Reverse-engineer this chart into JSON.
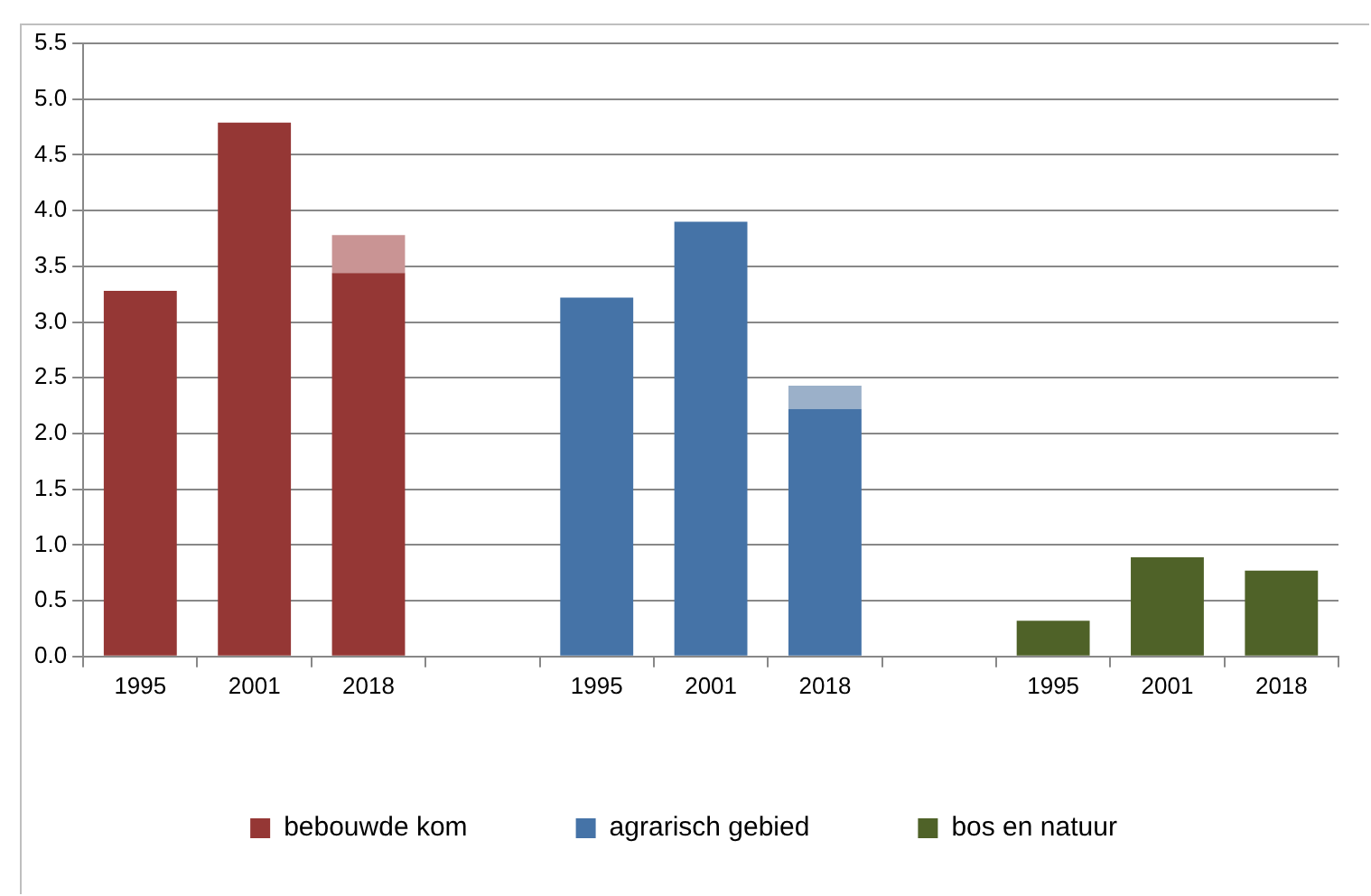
{
  "chart_data": {
    "type": "bar",
    "stacked": true,
    "categories": [
      "1995",
      "2001",
      "2018",
      null,
      "1995",
      "2001",
      "2018",
      null,
      "1995",
      "2001",
      "2018"
    ],
    "series": [
      {
        "name": "bebouwde kom",
        "color": "#953735",
        "values": [
          3.28,
          4.79,
          3.44,
          null,
          null,
          null,
          null,
          null,
          null,
          null,
          null
        ]
      },
      {
        "name": "agrarisch gebied",
        "color": "#4573a7",
        "values": [
          null,
          null,
          null,
          null,
          3.22,
          3.9,
          2.22,
          null,
          null,
          null,
          null
        ]
      },
      {
        "name": "bos en natuur",
        "color": "#4f6228",
        "values": [
          null,
          null,
          null,
          null,
          null,
          null,
          null,
          null,
          0.32,
          0.89,
          0.77
        ]
      },
      {
        "color": "#c99494",
        "values": [
          null,
          null,
          0.34,
          null,
          null,
          null,
          null,
          null,
          null,
          null,
          null
        ]
      },
      {
        "color": "#9bb0c9",
        "values": [
          null,
          null,
          null,
          null,
          null,
          null,
          0.21,
          null,
          null,
          null,
          null
        ]
      }
    ],
    "ylim": [
      0,
      5.5
    ],
    "yticks": [
      {
        "value": 0,
        "label": "0.0"
      },
      0.5,
      {
        "value": 1,
        "label": "1.0"
      },
      1.5,
      {
        "value": 2,
        "label": "2.0"
      },
      2.5,
      {
        "value": 3,
        "label": "3.0"
      },
      3.5,
      {
        "value": 4,
        "label": "4.0"
      },
      4.5,
      {
        "value": 5,
        "label": "5.0"
      },
      5.5
    ],
    "grid": "y",
    "legend": "bottom"
  }
}
